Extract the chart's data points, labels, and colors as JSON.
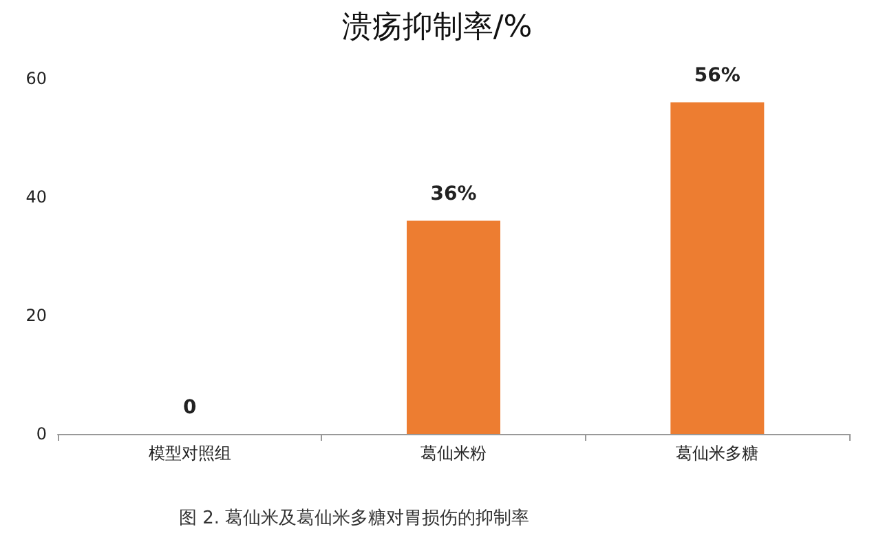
{
  "chart_data": {
    "type": "bar",
    "title": "溃疡抑制率/%",
    "categories": [
      "模型对照组",
      "葛仙米粉",
      "葛仙米多糖"
    ],
    "values": [
      0,
      36,
      56
    ],
    "value_labels": [
      "0",
      "36%",
      "56%"
    ],
    "color": "#ed7d31",
    "ylim": [
      0,
      60
    ],
    "yticks": [
      0,
      20,
      40,
      60
    ],
    "grid": false,
    "annotations": [
      "图 2. 葛仙米及葛仙米多糖对胃损伤的抑制率"
    ]
  }
}
